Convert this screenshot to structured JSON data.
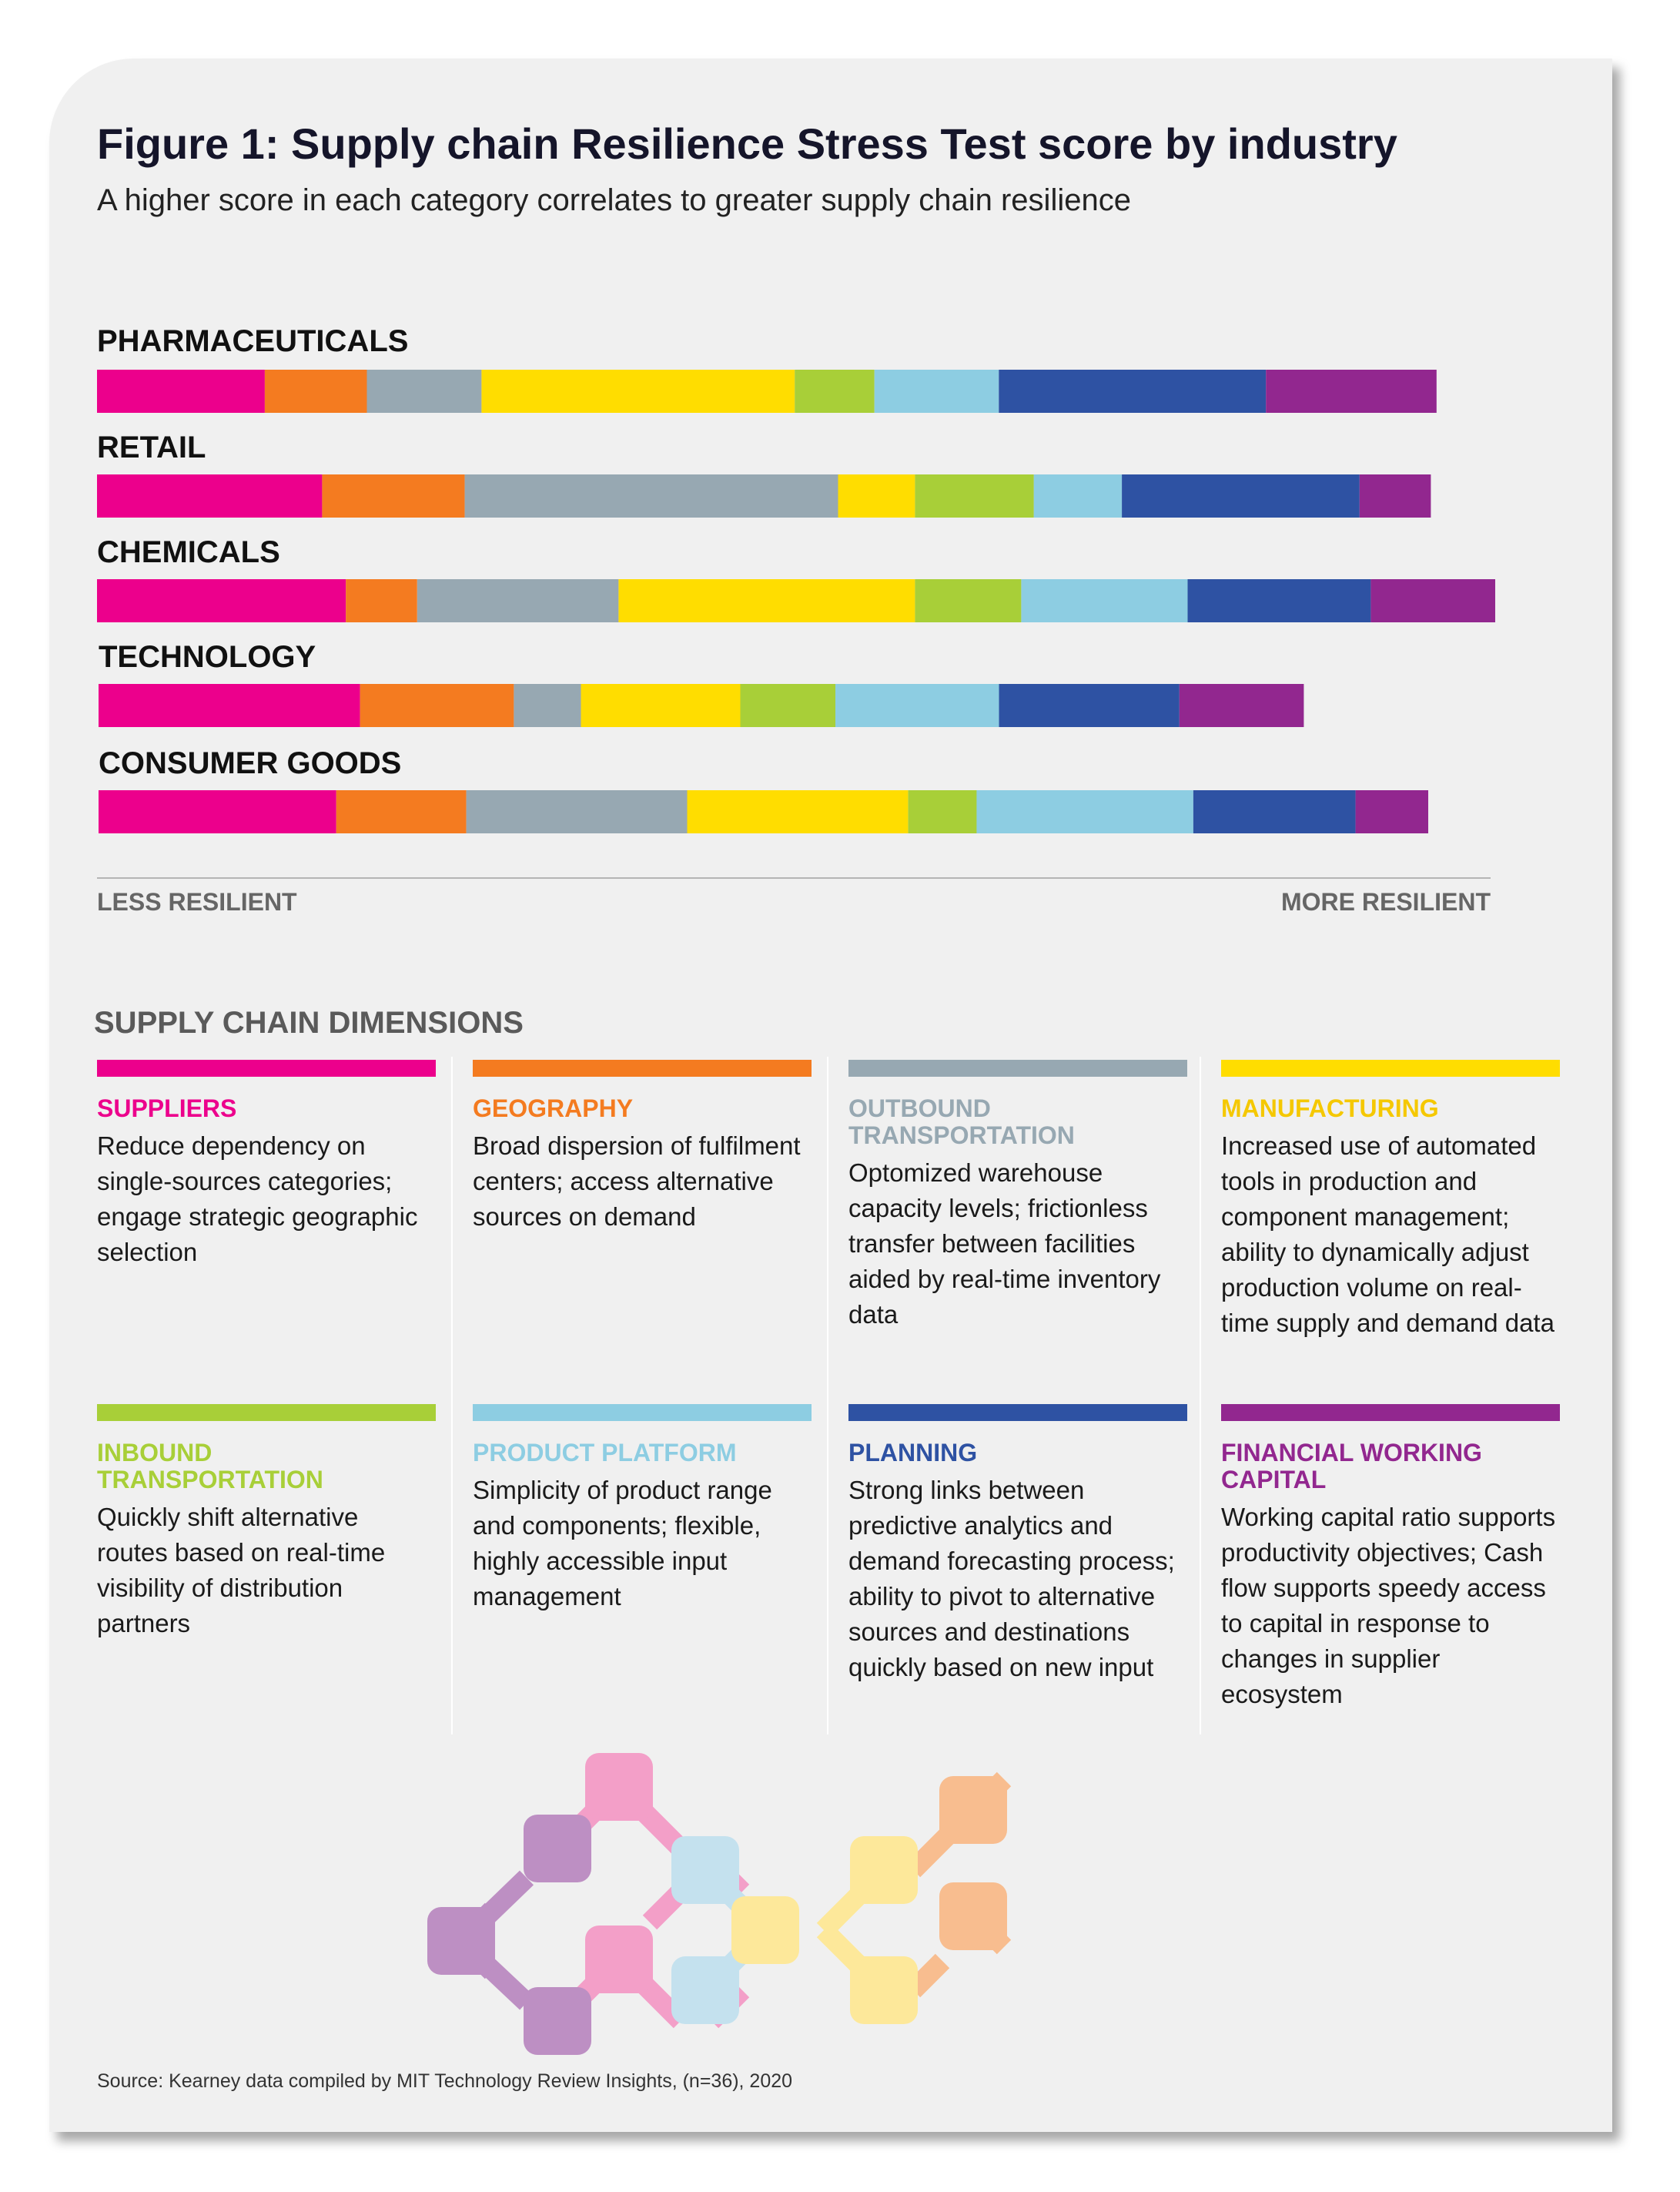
{
  "header": {
    "title": "Figure 1: Supply chain Resilience Stress Test score by industry",
    "subtitle": "A higher score in each category correlates to greater supply chain resilience"
  },
  "chart_data": {
    "type": "bar",
    "stacked": true,
    "orientation": "horizontal",
    "title": "Figure 1: Supply chain Resilience Stress Test score by industry",
    "subtitle": "A higher score in each category correlates to greater supply chain resilience",
    "categories": [
      "PHARMACEUTICALS",
      "RETAIL",
      "CHEMICALS",
      "TECHNOLOGY",
      "CONSUMER GOODS"
    ],
    "axis_left_label": "LESS RESILIENT",
    "axis_right_label": "MORE RESILIENT",
    "xlim": [
      0,
      100
    ],
    "grid": false,
    "legend": "bottom",
    "series": [
      {
        "name": "SUPPLIERS",
        "color": "#EC008C",
        "values": [
          12.0,
          16.1,
          17.8,
          18.7,
          17.0
        ]
      },
      {
        "name": "GEOGRAPHY",
        "color": "#F47B20",
        "values": [
          7.3,
          10.2,
          5.1,
          11.0,
          9.3
        ]
      },
      {
        "name": "OUTBOUND TRANSPORTATION",
        "color": "#97A8B2",
        "values": [
          8.2,
          26.7,
          14.4,
          4.8,
          15.8
        ]
      },
      {
        "name": "MANUFACTURING",
        "color": "#FFDD00",
        "values": [
          22.4,
          5.5,
          21.2,
          11.4,
          15.8
        ]
      },
      {
        "name": "INBOUND TRANSPORTATION",
        "color": "#A8CF38",
        "values": [
          5.7,
          8.5,
          7.6,
          6.8,
          4.9
        ]
      },
      {
        "name": "PRODUCT PLATFORM",
        "color": "#8DCDE2",
        "values": [
          8.9,
          6.3,
          11.9,
          11.7,
          15.5
        ]
      },
      {
        "name": "PLANNING",
        "color": "#2E52A3",
        "values": [
          19.1,
          17.0,
          13.1,
          12.9,
          11.6
        ]
      },
      {
        "name": "FINANCIAL WORKING CAPITAL",
        "color": "#92278F",
        "values": [
          12.2,
          5.1,
          8.9,
          8.9,
          5.2
        ]
      }
    ]
  },
  "dimensions": {
    "heading": "SUPPLY CHAIN DIMENSIONS",
    "items": [
      {
        "name": "SUPPLIERS",
        "color": "#EC008C",
        "text_color": "#EC008C",
        "description": "Reduce dependency on single-sources categories; engage strategic geographic selection"
      },
      {
        "name": "GEOGRAPHY",
        "color": "#F47B20",
        "text_color": "#F47B20",
        "description": "Broad dispersion of fulfilment centers; access alternative sources on demand"
      },
      {
        "name": "OUTBOUND TRANSPORTATION",
        "color": "#97A8B2",
        "text_color": "#97A8B2",
        "description": "Optomized warehouse capacity levels; frictionless transfer between facilities aided by real-time inventory data"
      },
      {
        "name": "MANUFACTURING",
        "color": "#FFDD00",
        "text_color": "#F5C800",
        "description": "Increased use of automated tools in production and component management; ability to dynamically adjust production volume on real-time supply and demand data"
      },
      {
        "name": "INBOUND TRANSPORTATION",
        "color": "#A8CF38",
        "text_color": "#A8CF38",
        "description": "Quickly shift alternative routes based on real-time visibility of distribution partners"
      },
      {
        "name": "PRODUCT PLATFORM",
        "color": "#8DCDE2",
        "text_color": "#8DCDE2",
        "description": "Simplicity of product range and components; flexible, highly accessible input management"
      },
      {
        "name": "PLANNING",
        "color": "#2E52A3",
        "text_color": "#2E52A3",
        "description": "Strong links between predictive analytics and demand forecasting process; ability to pivot to alternative sources and destinations quickly based on new input"
      },
      {
        "name": "FINANCIAL WORKING CAPITAL",
        "color": "#92278F",
        "text_color": "#92278F",
        "description": "Working capital ratio supports productivity objectives; Cash flow supports speedy access to capital in response to changes in supplier ecosystem"
      }
    ]
  },
  "footer": {
    "source": "Source: Kearney data compiled by MIT Technology Review Insights, (n=36), 2020"
  }
}
